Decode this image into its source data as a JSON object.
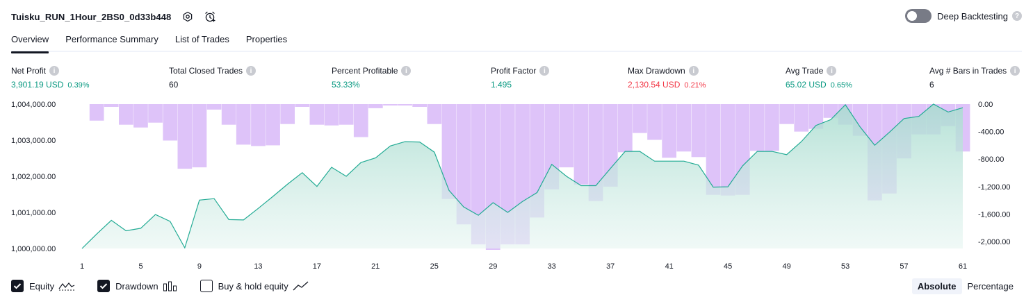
{
  "header": {
    "strategy_name": "Tuisku_RUN_1Hour_2BS0_0d33b448"
  },
  "deep_backtesting": {
    "label": "Deep Backtesting",
    "enabled": false
  },
  "tabs": [
    {
      "label": "Overview",
      "active": true
    },
    {
      "label": "Performance Summary",
      "active": false
    },
    {
      "label": "List of Trades",
      "active": false
    },
    {
      "label": "Properties",
      "active": false
    }
  ],
  "metrics": {
    "net_profit": {
      "label": "Net Profit",
      "value": "3,901.19 USD",
      "pct": "0.39%"
    },
    "total_closed_trades": {
      "label": "Total Closed Trades",
      "value": "60"
    },
    "percent_profitable": {
      "label": "Percent Profitable",
      "value": "53.33%"
    },
    "profit_factor": {
      "label": "Profit Factor",
      "value": "1.495"
    },
    "max_drawdown": {
      "label": "Max Drawdown",
      "value": "2,130.54 USD",
      "pct": "0.21%"
    },
    "avg_trade": {
      "label": "Avg Trade",
      "value": "65.02 USD",
      "pct": "0.65%"
    },
    "avg_bars": {
      "label": "Avg # Bars in Trades",
      "value": "6"
    }
  },
  "chart_data": {
    "type": "area",
    "x": [
      1,
      2,
      3,
      4,
      5,
      6,
      7,
      8,
      9,
      10,
      11,
      12,
      13,
      14,
      15,
      16,
      17,
      18,
      19,
      20,
      21,
      22,
      23,
      24,
      25,
      26,
      27,
      28,
      29,
      30,
      31,
      32,
      33,
      34,
      35,
      36,
      37,
      38,
      39,
      40,
      41,
      42,
      43,
      44,
      45,
      46,
      47,
      48,
      49,
      50,
      51,
      52,
      53,
      54,
      55,
      56,
      57,
      58,
      59,
      60,
      61
    ],
    "x_ticks": [
      "1",
      "5",
      "9",
      "13",
      "17",
      "21",
      "25",
      "29",
      "33",
      "37",
      "41",
      "45",
      "49",
      "53",
      "57",
      "61"
    ],
    "left_axis": {
      "ticks": [
        "1,004,000.00",
        "1,003,000.00",
        "1,002,000.00",
        "1,001,000.00",
        "1,000,000.00"
      ],
      "range": [
        1000000,
        1004000
      ]
    },
    "right_axis": {
      "ticks": [
        "0.00",
        "-400.00",
        "-800.00",
        "-1,200.00",
        "-1,600.00",
        "-2,000.00"
      ],
      "range": [
        -2100,
        0
      ]
    },
    "series": [
      {
        "name": "Equity",
        "color": "#22ab94",
        "values": [
          1000000,
          1000400,
          1000780,
          1000490,
          1000560,
          1000940,
          1000750,
          1000020,
          1001340,
          1001380,
          1000800,
          1000790,
          1001110,
          1001440,
          1001780,
          1002100,
          1001720,
          1002250,
          1002000,
          1002380,
          1002510,
          1002840,
          1002960,
          1002950,
          1002670,
          1001610,
          1001150,
          1000920,
          1001270,
          1001000,
          1001300,
          1001550,
          1002330,
          1002000,
          1001740,
          1001740,
          1002220,
          1002690,
          1002690,
          1002420,
          1002420,
          1002420,
          1002310,
          1001700,
          1001710,
          1002290,
          1002690,
          1002690,
          1002600,
          1002960,
          1003410,
          1003570,
          1003980,
          1003370,
          1002860,
          1003220,
          1003600,
          1003660,
          1004000,
          1003780,
          1003900
        ]
      },
      {
        "name": "Drawdown",
        "color": "#b39ddb",
        "values": [
          0,
          -240,
          -40,
          -300,
          -340,
          -270,
          -530,
          -940,
          -920,
          -80,
          -300,
          -590,
          -610,
          -600,
          -290,
          -40,
          -300,
          -310,
          -300,
          -480,
          -60,
          -20,
          -20,
          -40,
          -290,
          -1380,
          -1750,
          -2040,
          -2120,
          -2040,
          -2040,
          -1650,
          -1240,
          -920,
          -1170,
          -1410,
          -1200,
          -700,
          -420,
          -520,
          -780,
          -690,
          -770,
          -1320,
          -1330,
          -1320,
          -680,
          -680,
          -290,
          -400,
          -360,
          -200,
          -300,
          -460,
          -1400,
          -1300,
          -790,
          -440,
          -440,
          -320,
          -690
        ]
      }
    ]
  },
  "legend": [
    {
      "label": "Equity",
      "checked": true,
      "icon": "equity-area-icon"
    },
    {
      "label": "Drawdown",
      "checked": true,
      "icon": "drawdown-bars-icon"
    },
    {
      "label": "Buy & hold equity",
      "checked": false,
      "icon": "buyhold-line-icon"
    }
  ],
  "mode": {
    "absolute": "Absolute",
    "percentage": "Percentage",
    "selected": "Absolute"
  }
}
